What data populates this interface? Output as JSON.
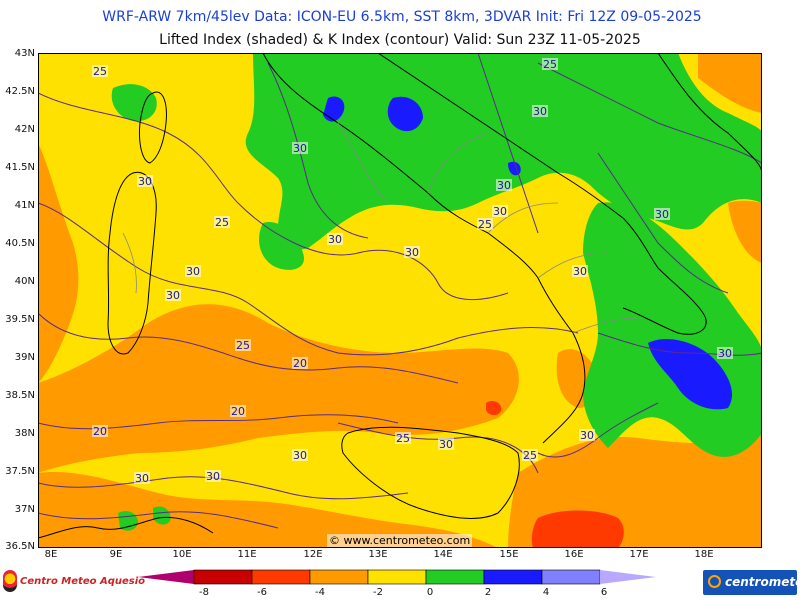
{
  "header": {
    "line1": "WRF-ARW 7km/45lev   Data: ICON-EU 6.5km, SST 8km, 3DVAR   Init: Fri 12Z 09-05-2025",
    "line2": "Lifted Index (shaded) & K Index (contour)   Valid: Sun 23Z 11-05-2025"
  },
  "axes": {
    "lat_labels": [
      "43N",
      "42.5N",
      "42N",
      "41.5N",
      "41N",
      "40.5N",
      "40N",
      "39.5N",
      "39N",
      "38.5N",
      "38N",
      "37.5N",
      "37N",
      "36.5N"
    ],
    "lon_labels": [
      "8E",
      "9E",
      "10E",
      "11E",
      "12E",
      "13E",
      "14E",
      "15E",
      "16E",
      "17E",
      "18E"
    ]
  },
  "watermark": "© www.centrometeo.com",
  "logos": {
    "left_text": "Centro Meteo Aquesio",
    "right_text": "centrometeo"
  },
  "legend": {
    "tick_labels": [
      "-8",
      "-6",
      "-4",
      "-2",
      "0",
      "2",
      "4",
      "6"
    ],
    "colors": [
      "#b0006e",
      "#c80000",
      "#ff3a00",
      "#ff9a00",
      "#ffe100",
      "#22cc22",
      "#1a1aff",
      "#8080ff",
      "#b8a8ff"
    ]
  },
  "contour_labels": [
    {
      "value": "25"
    },
    {
      "value": "25"
    },
    {
      "value": "30"
    },
    {
      "value": "30"
    },
    {
      "value": "30"
    },
    {
      "value": "30"
    },
    {
      "value": "30"
    },
    {
      "value": "25"
    },
    {
      "value": "30"
    },
    {
      "value": "30"
    },
    {
      "value": "30"
    },
    {
      "value": "25"
    },
    {
      "value": "30"
    },
    {
      "value": "30"
    },
    {
      "value": "30"
    },
    {
      "value": "25"
    },
    {
      "value": "20"
    },
    {
      "value": "20"
    },
    {
      "value": "20"
    },
    {
      "value": "25"
    },
    {
      "value": "30"
    },
    {
      "value": "25"
    },
    {
      "value": "30"
    },
    {
      "value": "30"
    },
    {
      "value": "30"
    },
    {
      "value": "30"
    },
    {
      "value": "30"
    }
  ],
  "colors": {
    "li_orange": "#ff9a00",
    "li_yellow": "#ffe100",
    "li_green": "#22cc22",
    "li_blue": "#1a1aff",
    "li_red": "#ff3a00",
    "contour": "#5a2a8a",
    "coast": "#000000",
    "borders": "#888888"
  }
}
